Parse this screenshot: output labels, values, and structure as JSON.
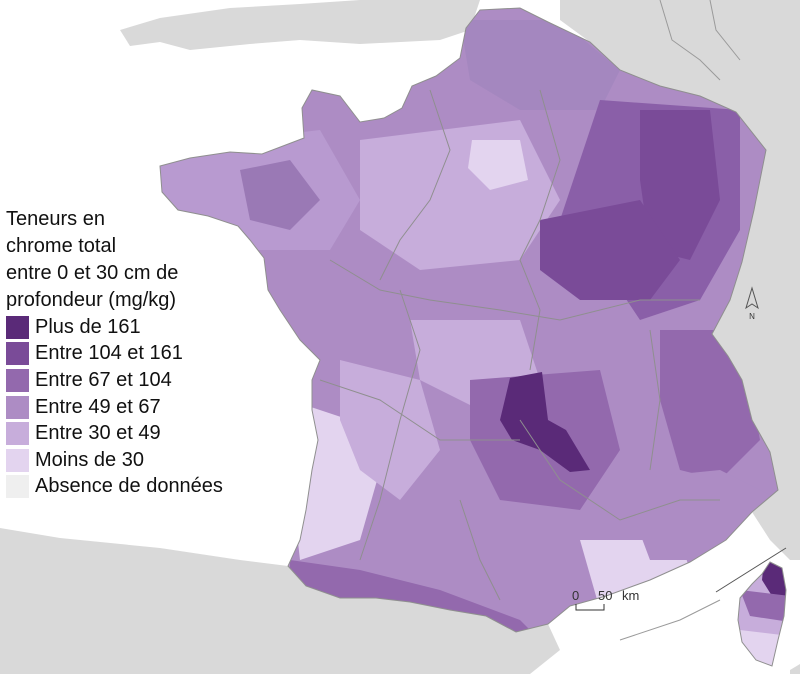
{
  "legend": {
    "title_lines": [
      "Teneurs en",
      "chrome total",
      "entre 0 et 30 cm de",
      "profondeur (mg/kg)"
    ],
    "classes": [
      {
        "label": "Plus de 161",
        "color": "#5a2a78"
      },
      {
        "label": "Entre 104 et 161",
        "color": "#7a4b98"
      },
      {
        "label": "Entre 67 et 104",
        "color": "#9369ad"
      },
      {
        "label": "Entre 49 et 67",
        "color": "#ad8cc4"
      },
      {
        "label": "Entre 30 et 49",
        "color": "#c7addb"
      },
      {
        "label": "Moins de 30",
        "color": "#e3d4ef"
      },
      {
        "label": "Absence de données",
        "color": "#efefef"
      }
    ]
  },
  "scale_bar": {
    "start": "0",
    "end": "50",
    "unit": "km"
  },
  "north_arrow": {
    "label": "N"
  },
  "colors": {
    "sea": "#ffffff",
    "neighbour_land": "#d9d9d9",
    "borders": "#8f8f8f"
  }
}
